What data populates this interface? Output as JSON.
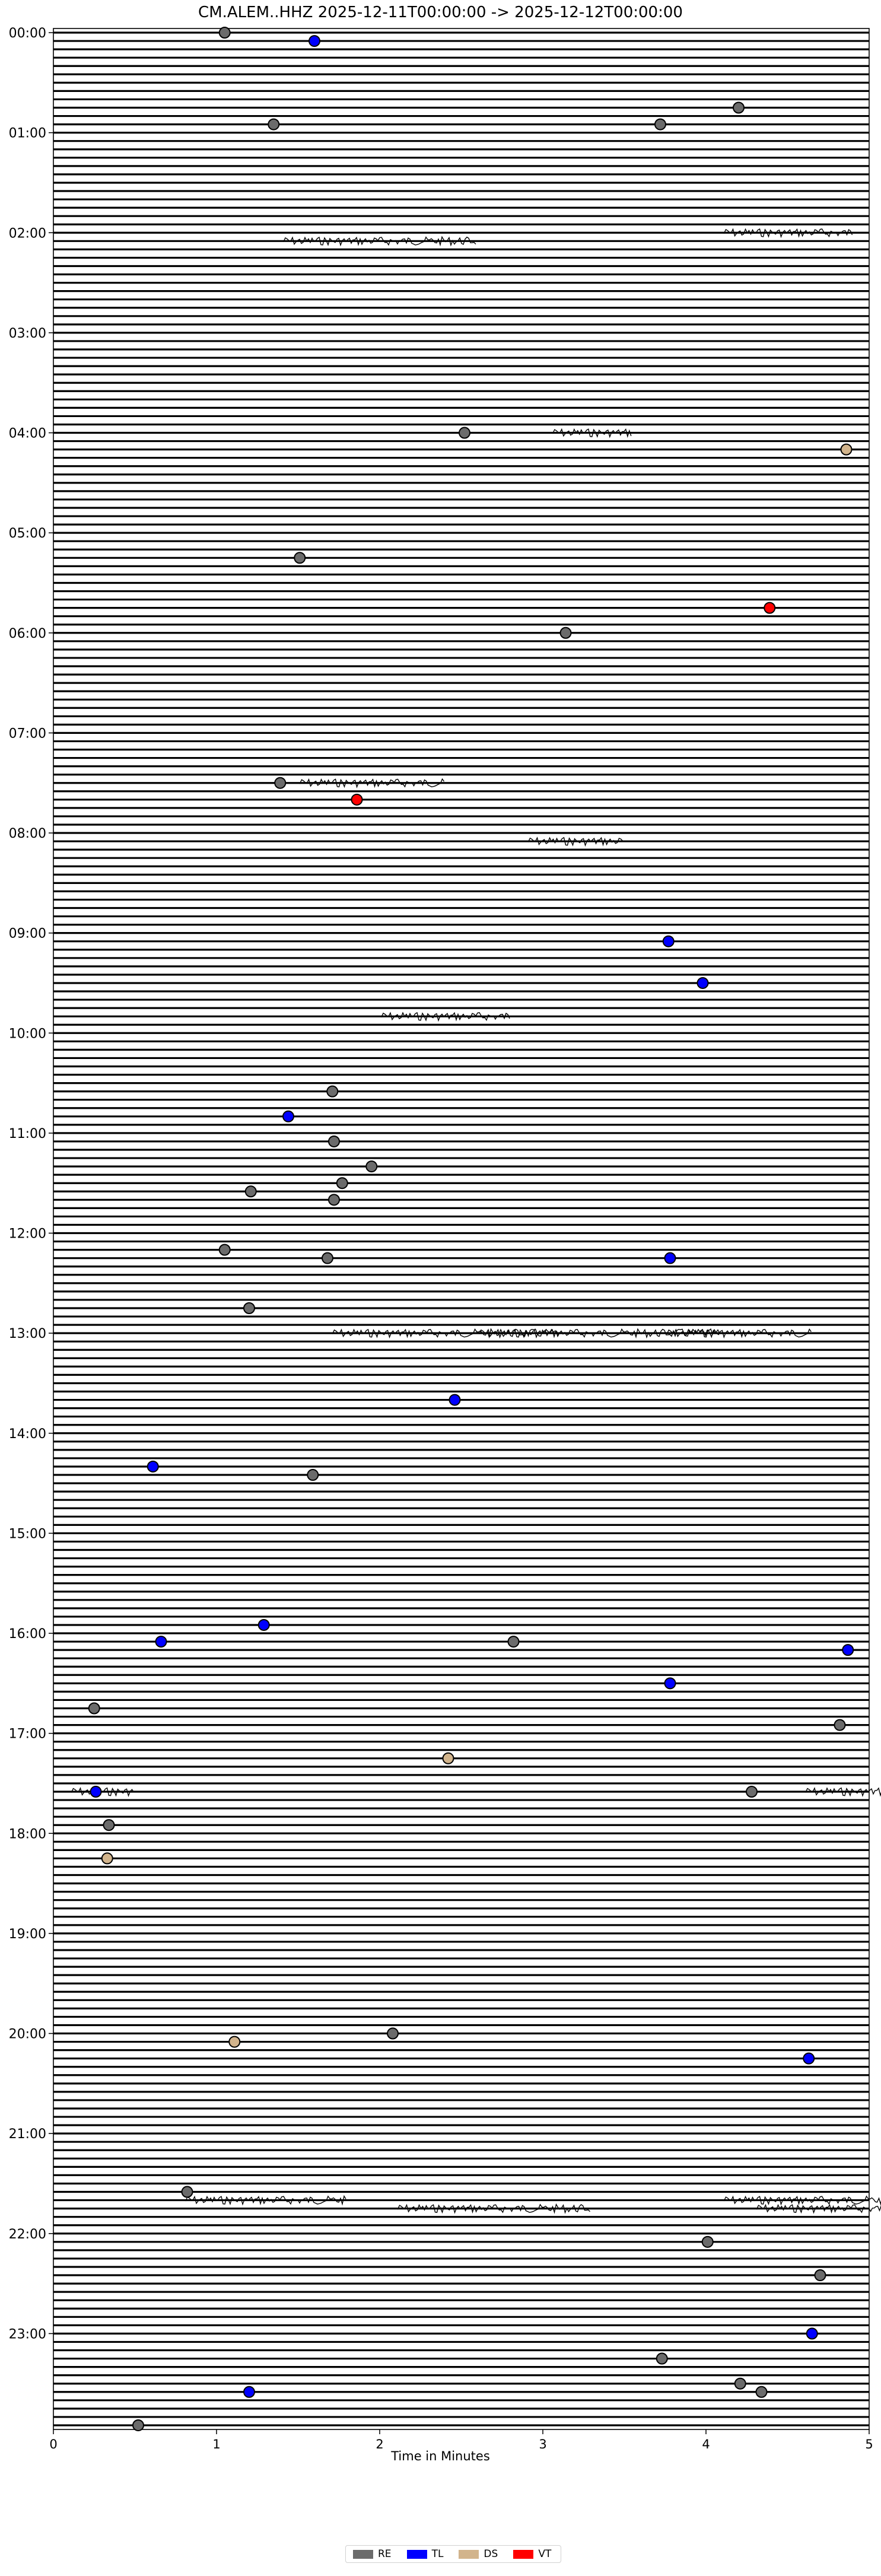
{
  "chart_data": {
    "type": "scatter",
    "title": "CM.ALEM..HHZ  2025-12-11T00:00:00 -> 2025-12-12T00:00:00",
    "xlabel": "Time in Minutes",
    "ylabel": "",
    "xlim": [
      0,
      5
    ],
    "x_ticks": [
      "0",
      "1",
      "2",
      "3",
      "4",
      "5"
    ],
    "y_ticks": [
      "00:00",
      "01:00",
      "02:00",
      "03:00",
      "04:00",
      "05:00",
      "06:00",
      "07:00",
      "08:00",
      "09:00",
      "10:00",
      "11:00",
      "12:00",
      "13:00",
      "14:00",
      "15:00",
      "16:00",
      "17:00",
      "18:00",
      "19:00",
      "20:00",
      "21:00",
      "22:00",
      "23:00"
    ],
    "row_count": 288,
    "row_minutes": 5,
    "grid": false,
    "legend_position": "bottom-center",
    "legend": [
      {
        "label": "RE",
        "color": "#6b6b6b"
      },
      {
        "label": "TL",
        "color": "#0000ff"
      },
      {
        "label": "DS",
        "color": "#d2b48c"
      },
      {
        "label": "VT",
        "color": "#ff0000"
      }
    ],
    "events": [
      {
        "time": "00:00",
        "minute": 1.05,
        "class": "RE"
      },
      {
        "time": "00:05",
        "minute": 1.6,
        "class": "TL"
      },
      {
        "time": "00:45",
        "minute": 4.2,
        "class": "RE"
      },
      {
        "time": "00:55",
        "minute": 1.35,
        "class": "RE"
      },
      {
        "time": "00:55",
        "minute": 3.72,
        "class": "RE"
      },
      {
        "time": "04:00",
        "minute": 2.52,
        "class": "RE"
      },
      {
        "time": "04:10",
        "minute": 4.86,
        "class": "DS"
      },
      {
        "time": "05:15",
        "minute": 1.51,
        "class": "RE"
      },
      {
        "time": "05:45",
        "minute": 4.39,
        "class": "VT"
      },
      {
        "time": "06:00",
        "minute": 3.14,
        "class": "RE"
      },
      {
        "time": "07:30",
        "minute": 1.39,
        "class": "RE"
      },
      {
        "time": "07:40",
        "minute": 1.86,
        "class": "VT"
      },
      {
        "time": "09:05",
        "minute": 3.77,
        "class": "TL"
      },
      {
        "time": "09:30",
        "minute": 3.98,
        "class": "TL"
      },
      {
        "time": "10:35",
        "minute": 1.71,
        "class": "RE"
      },
      {
        "time": "10:50",
        "minute": 1.44,
        "class": "TL"
      },
      {
        "time": "11:05",
        "minute": 1.72,
        "class": "RE"
      },
      {
        "time": "11:20",
        "minute": 1.95,
        "class": "RE"
      },
      {
        "time": "11:30",
        "minute": 1.77,
        "class": "RE"
      },
      {
        "time": "11:35",
        "minute": 1.21,
        "class": "RE"
      },
      {
        "time": "11:40",
        "minute": 1.72,
        "class": "RE"
      },
      {
        "time": "12:10",
        "minute": 1.05,
        "class": "RE"
      },
      {
        "time": "12:15",
        "minute": 1.68,
        "class": "RE"
      },
      {
        "time": "12:15",
        "minute": 3.78,
        "class": "TL"
      },
      {
        "time": "12:45",
        "minute": 1.2,
        "class": "RE"
      },
      {
        "time": "13:40",
        "minute": 2.46,
        "class": "TL"
      },
      {
        "time": "14:20",
        "minute": 0.61,
        "class": "TL"
      },
      {
        "time": "14:25",
        "minute": 1.59,
        "class": "RE"
      },
      {
        "time": "15:55",
        "minute": 1.29,
        "class": "TL"
      },
      {
        "time": "16:05",
        "minute": 0.66,
        "class": "TL"
      },
      {
        "time": "16:05",
        "minute": 2.82,
        "class": "RE"
      },
      {
        "time": "16:10",
        "minute": 4.87,
        "class": "TL"
      },
      {
        "time": "16:30",
        "minute": 3.78,
        "class": "TL"
      },
      {
        "time": "16:45",
        "minute": 0.25,
        "class": "RE"
      },
      {
        "time": "16:55",
        "minute": 4.82,
        "class": "RE"
      },
      {
        "time": "17:15",
        "minute": 2.42,
        "class": "DS"
      },
      {
        "time": "17:35",
        "minute": 0.26,
        "class": "TL"
      },
      {
        "time": "17:35",
        "minute": 4.28,
        "class": "RE"
      },
      {
        "time": "17:55",
        "minute": 0.34,
        "class": "RE"
      },
      {
        "time": "18:15",
        "minute": 0.33,
        "class": "DS"
      },
      {
        "time": "20:00",
        "minute": 2.08,
        "class": "RE"
      },
      {
        "time": "20:05",
        "minute": 1.11,
        "class": "DS"
      },
      {
        "time": "20:15",
        "minute": 4.63,
        "class": "TL"
      },
      {
        "time": "21:35",
        "minute": 0.82,
        "class": "RE"
      },
      {
        "time": "22:05",
        "minute": 4.01,
        "class": "RE"
      },
      {
        "time": "22:25",
        "minute": 4.7,
        "class": "RE"
      },
      {
        "time": "23:00",
        "minute": 4.65,
        "class": "TL"
      },
      {
        "time": "23:15",
        "minute": 3.73,
        "class": "RE"
      },
      {
        "time": "23:30",
        "minute": 4.21,
        "class": "RE"
      },
      {
        "time": "23:35",
        "minute": 1.2,
        "class": "TL"
      },
      {
        "time": "23:35",
        "minute": 4.34,
        "class": "RE"
      },
      {
        "time": "23:55",
        "minute": 0.52,
        "class": "RE"
      }
    ],
    "noise_rows": [
      {
        "time": "02:05",
        "minute": 1.4,
        "width": 1.2
      },
      {
        "time": "02:00",
        "minute": 4.1,
        "width": 0.8
      },
      {
        "time": "04:00",
        "minute": 3.05,
        "width": 0.5
      },
      {
        "time": "07:30",
        "minute": 1.5,
        "width": 0.9
      },
      {
        "time": "08:05",
        "minute": 2.9,
        "width": 0.6
      },
      {
        "time": "09:50",
        "minute": 2.0,
        "width": 0.8
      },
      {
        "time": "13:00",
        "minute": 2.6,
        "width": 1.5
      },
      {
        "time": "13:00",
        "minute": 1.7,
        "width": 1.4
      },
      {
        "time": "13:00",
        "minute": 3.75,
        "width": 0.9
      },
      {
        "time": "17:35",
        "minute": 0.1,
        "width": 0.4
      },
      {
        "time": "17:35",
        "minute": 4.6,
        "width": 0.8
      },
      {
        "time": "21:40",
        "minute": 0.8,
        "width": 1.0
      },
      {
        "time": "21:40",
        "minute": 4.1,
        "width": 1.2
      },
      {
        "time": "21:45",
        "minute": 2.1,
        "width": 1.2
      },
      {
        "time": "21:45",
        "minute": 4.3,
        "width": 0.9
      }
    ]
  }
}
